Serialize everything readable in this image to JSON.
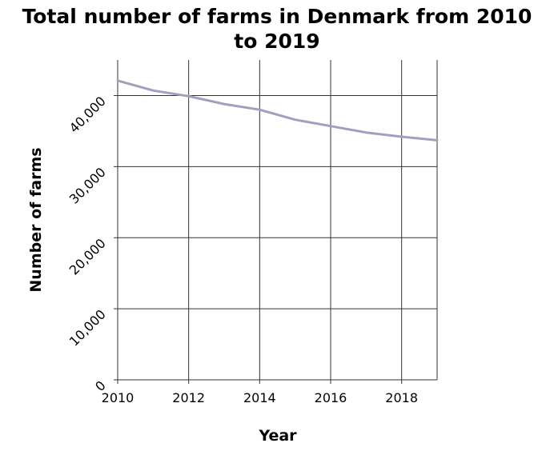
{
  "chart_data": {
    "type": "line",
    "title_lines": [
      "Total number of farms in Denmark from 2010",
      "to 2019"
    ],
    "xlabel": "Year",
    "ylabel": "Number of farms",
    "x": [
      2010,
      2011,
      2012,
      2013,
      2014,
      2015,
      2016,
      2017,
      2018,
      2019
    ],
    "series": [
      {
        "values": [
          42100,
          40700,
          39900,
          38800,
          38000,
          36600,
          35700,
          34800,
          34200,
          33700
        ]
      }
    ],
    "xlim": [
      2010,
      2019
    ],
    "ylim": [
      0,
      45000
    ],
    "x_ticks": [
      2010,
      2012,
      2014,
      2016,
      2018
    ],
    "x_tick_labels": [
      "2010",
      "2012",
      "2014",
      "2016",
      "2018"
    ],
    "y_ticks": [
      0,
      10000,
      20000,
      30000,
      40000
    ],
    "y_tick_labels": [
      "0",
      "10,000",
      "20,000",
      "30,000",
      "40,000"
    ],
    "grid": true,
    "line_color": "#a99bbd"
  }
}
